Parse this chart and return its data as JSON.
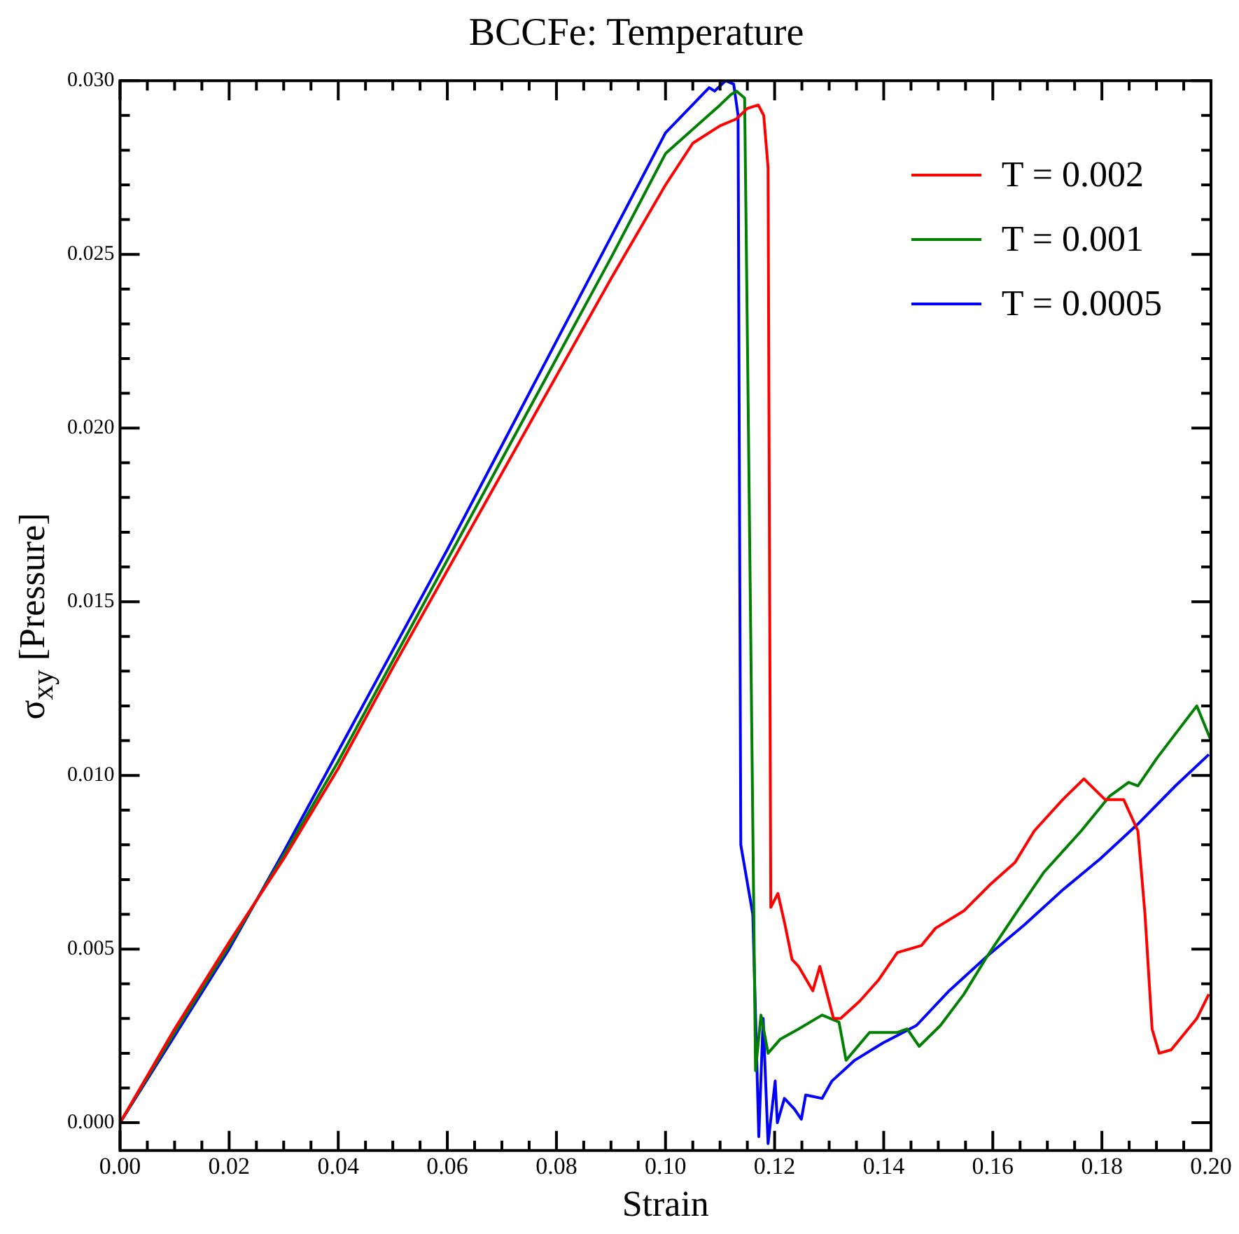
{
  "chart_data": {
    "type": "line",
    "title": "BCCFe: Temperature",
    "xlabel": "Strain",
    "ylabel": "σ$_{xy}$ [Pressure]",
    "xlim": [
      0,
      0.2
    ],
    "ylim": [
      -0.0008,
      0.03
    ],
    "xticks": [
      {
        "value": 0,
        "label": "0.00"
      },
      {
        "value": 0.005,
        "label": null
      },
      {
        "value": 0.01,
        "label": null
      },
      {
        "value": 0.015,
        "label": null
      },
      {
        "value": 0.02,
        "label": "0.02"
      },
      {
        "value": 0.025,
        "label": null
      },
      {
        "value": 0.03,
        "label": null
      },
      {
        "value": 0.035,
        "label": null
      },
      {
        "value": 0.04,
        "label": "0.04"
      },
      {
        "value": 0.045,
        "label": null
      },
      {
        "value": 0.05,
        "label": null
      },
      {
        "value": 0.055,
        "label": null
      },
      {
        "value": 0.06,
        "label": "0.06"
      },
      {
        "value": 0.065,
        "label": null
      },
      {
        "value": 0.07,
        "label": null
      },
      {
        "value": 0.075,
        "label": null
      },
      {
        "value": 0.08,
        "label": "0.08"
      },
      {
        "value": 0.085,
        "label": null
      },
      {
        "value": 0.09,
        "label": null
      },
      {
        "value": 0.095,
        "label": null
      },
      {
        "value": 0.1,
        "label": "0.10"
      },
      {
        "value": 0.105,
        "label": null
      },
      {
        "value": 0.11,
        "label": null
      },
      {
        "value": 0.115,
        "label": null
      },
      {
        "value": 0.12,
        "label": "0.12"
      },
      {
        "value": 0.125,
        "label": null
      },
      {
        "value": 0.13,
        "label": null
      },
      {
        "value": 0.135,
        "label": null
      },
      {
        "value": 0.14,
        "label": "0.14"
      },
      {
        "value": 0.145,
        "label": null
      },
      {
        "value": 0.15,
        "label": null
      },
      {
        "value": 0.155,
        "label": null
      },
      {
        "value": 0.16,
        "label": "0.16"
      },
      {
        "value": 0.165,
        "label": null
      },
      {
        "value": 0.17,
        "label": null
      },
      {
        "value": 0.175,
        "label": null
      },
      {
        "value": 0.18,
        "label": "0.18"
      },
      {
        "value": 0.185,
        "label": null
      },
      {
        "value": 0.19,
        "label": null
      },
      {
        "value": 0.195,
        "label": null
      },
      {
        "value": 0.2,
        "label": "0.20"
      }
    ],
    "yticks": [
      {
        "value": 0,
        "label": "0.000"
      },
      {
        "value": 0.001,
        "label": null
      },
      {
        "value": 0.002,
        "label": null
      },
      {
        "value": 0.003,
        "label": null
      },
      {
        "value": 0.004,
        "label": null
      },
      {
        "value": 0.005,
        "label": "0.005"
      },
      {
        "value": 0.006,
        "label": null
      },
      {
        "value": 0.007,
        "label": null
      },
      {
        "value": 0.008,
        "label": null
      },
      {
        "value": 0.009,
        "label": null
      },
      {
        "value": 0.01,
        "label": "0.010"
      },
      {
        "value": 0.011,
        "label": null
      },
      {
        "value": 0.012,
        "label": null
      },
      {
        "value": 0.013,
        "label": null
      },
      {
        "value": 0.014,
        "label": null
      },
      {
        "value": 0.015,
        "label": "0.015"
      },
      {
        "value": 0.016,
        "label": null
      },
      {
        "value": 0.017,
        "label": null
      },
      {
        "value": 0.018,
        "label": null
      },
      {
        "value": 0.019,
        "label": null
      },
      {
        "value": 0.02,
        "label": "0.020"
      },
      {
        "value": 0.021,
        "label": null
      },
      {
        "value": 0.022,
        "label": null
      },
      {
        "value": 0.023,
        "label": null
      },
      {
        "value": 0.024,
        "label": null
      },
      {
        "value": 0.025,
        "label": "0.025"
      },
      {
        "value": 0.026,
        "label": null
      },
      {
        "value": 0.027,
        "label": null
      },
      {
        "value": 0.028,
        "label": null
      },
      {
        "value": 0.029,
        "label": null
      },
      {
        "value": 0.03,
        "label": "0.030"
      }
    ],
    "grid": false,
    "legend": "top right",
    "line_style": "solid",
    "series": [
      {
        "name": "T = 0.002",
        "color": "#ff0000",
        "x": [
          0,
          0.01,
          0.02,
          0.03,
          0.04,
          0.05,
          0.06,
          0.07,
          0.08,
          0.09,
          0.1,
          0.105,
          0.11,
          0.113,
          0.115,
          0.117,
          0.118,
          0.1188,
          0.1193,
          0.1206,
          0.1219,
          0.1232,
          0.1244,
          0.127,
          0.1283,
          0.1308,
          0.1321,
          0.1356,
          0.139,
          0.1425,
          0.1469,
          0.1495,
          0.1547,
          0.1598,
          0.1641,
          0.1676,
          0.1728,
          0.1767,
          0.1806,
          0.184,
          0.1866,
          0.1879,
          0.1892,
          0.1905,
          0.1927,
          0.1953,
          0.1974,
          0.1996
        ],
        "values": [
          0,
          0.0027,
          0.0052,
          0.0076,
          0.0102,
          0.0131,
          0.0159,
          0.0187,
          0.0215,
          0.0243,
          0.027,
          0.0282,
          0.0287,
          0.0289,
          0.0292,
          0.0293,
          0.029,
          0.0275,
          0.0062,
          0.0066,
          0.0057,
          0.0047,
          0.0045,
          0.0038,
          0.0045,
          0.003,
          0.003,
          0.0035,
          0.0041,
          0.0049,
          0.0051,
          0.0056,
          0.0061,
          0.0069,
          0.0075,
          0.0084,
          0.0093,
          0.0099,
          0.0093,
          0.0093,
          0.0084,
          0.006,
          0.0027,
          0.002,
          0.0021,
          0.0026,
          0.003,
          0.0037
        ]
      },
      {
        "name": "T = 0.001",
        "color": "#008000",
        "x": [
          0,
          0.01,
          0.02,
          0.03,
          0.04,
          0.05,
          0.06,
          0.07,
          0.08,
          0.09,
          0.1,
          0.11,
          0.112,
          0.113,
          0.1145,
          0.1152,
          0.1165,
          0.1175,
          0.1188,
          0.121,
          0.1244,
          0.1287,
          0.1318,
          0.1331,
          0.1374,
          0.1425,
          0.1443,
          0.1465,
          0.1504,
          0.1547,
          0.159,
          0.1641,
          0.1693,
          0.1762,
          0.1814,
          0.1849,
          0.1866,
          0.1901,
          0.1935,
          0.1974,
          0.2
        ],
        "values": [
          0,
          0.0026,
          0.0051,
          0.0077,
          0.0104,
          0.0133,
          0.0162,
          0.0191,
          0.022,
          0.0249,
          0.0279,
          0.0293,
          0.0296,
          0.0297,
          0.0295,
          0.02,
          0.0015,
          0.0031,
          0.002,
          0.0024,
          0.0027,
          0.0031,
          0.0029,
          0.0018,
          0.0026,
          0.0026,
          0.0027,
          0.0022,
          0.0028,
          0.0037,
          0.0048,
          0.006,
          0.0072,
          0.0084,
          0.0094,
          0.0098,
          0.0097,
          0.0105,
          0.0112,
          0.012,
          0.011
        ]
      },
      {
        "name": "T = 0.0005",
        "color": "#0000ff",
        "x": [
          0,
          0.01,
          0.02,
          0.03,
          0.04,
          0.05,
          0.06,
          0.07,
          0.08,
          0.09,
          0.1,
          0.108,
          0.109,
          0.111,
          0.1125,
          0.1133,
          0.1138,
          0.116,
          0.1171,
          0.1179,
          0.1188,
          0.1201,
          0.1205,
          0.1218,
          0.1236,
          0.1249,
          0.1257,
          0.1287,
          0.1305,
          0.1347,
          0.1399,
          0.146,
          0.152,
          0.159,
          0.1658,
          0.1728,
          0.1797,
          0.1866,
          0.1935,
          0.1996
        ],
        "values": [
          0,
          0.0025,
          0.005,
          0.0078,
          0.0107,
          0.0136,
          0.0165,
          0.0195,
          0.0225,
          0.0255,
          0.0285,
          0.0298,
          0.0297,
          0.03,
          0.0299,
          0.029,
          0.008,
          0.006,
          -0.0004,
          0.003,
          -0.0006,
          0.0012,
          0,
          0.0007,
          0.0004,
          0.0001,
          0.0008,
          0.0007,
          0.0012,
          0.0018,
          0.0023,
          0.0028,
          0.0038,
          0.0048,
          0.0057,
          0.0067,
          0.0076,
          0.0086,
          0.0097,
          0.0106
        ]
      }
    ]
  }
}
